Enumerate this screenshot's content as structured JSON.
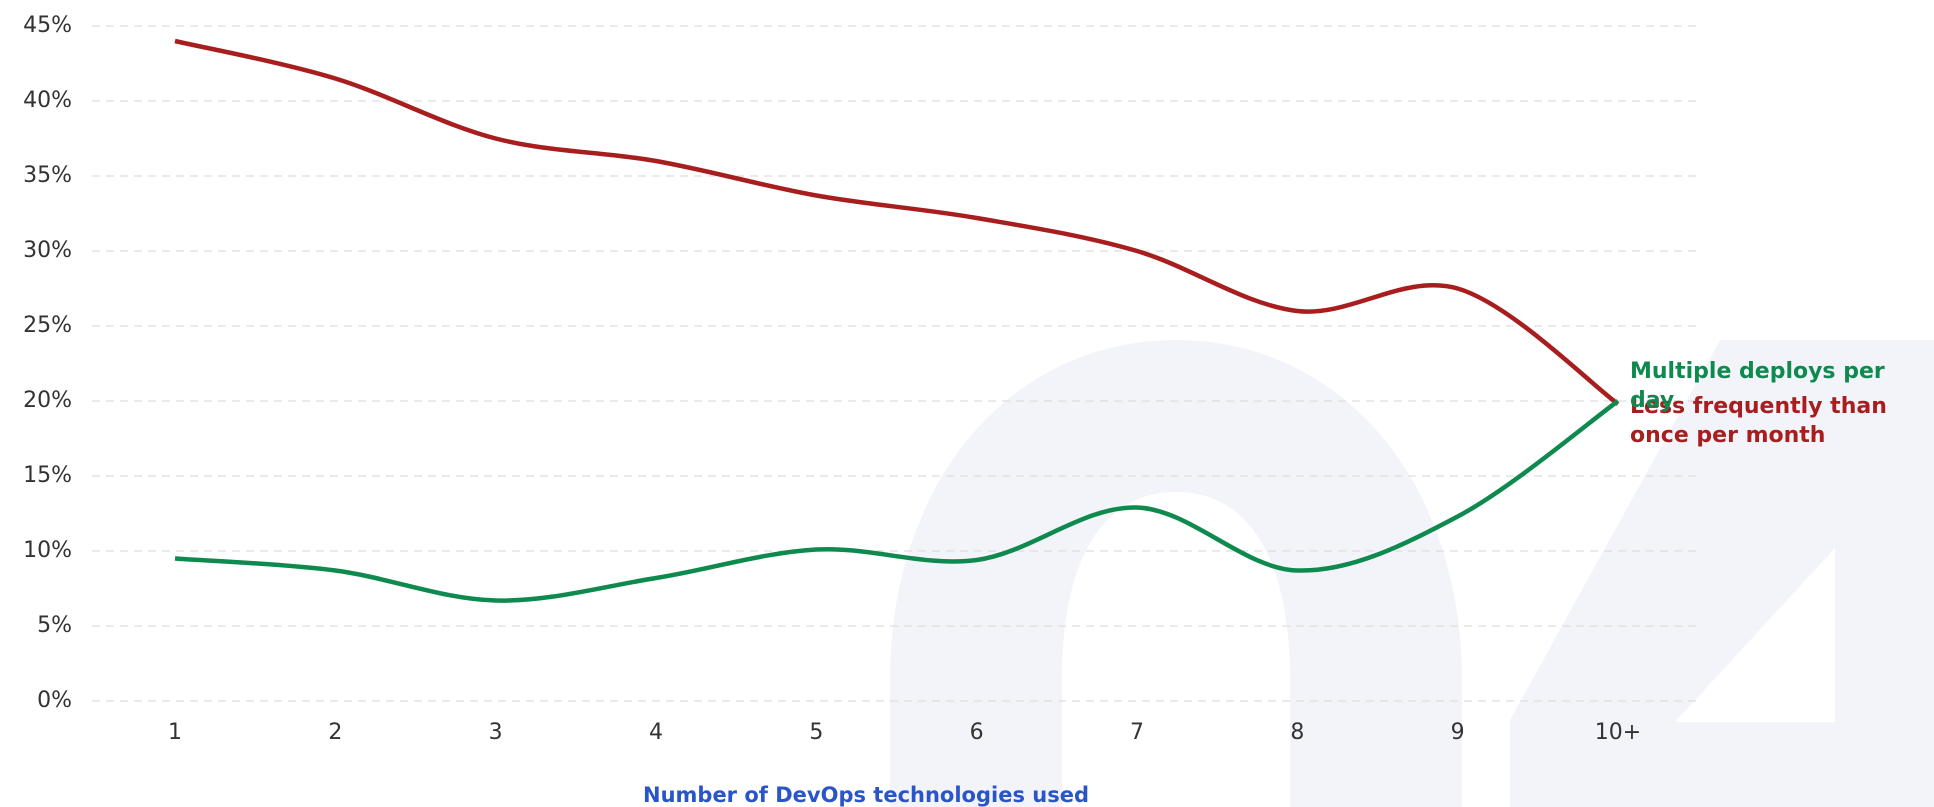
{
  "chart_data": {
    "type": "line",
    "x_label": "Number of DevOps technologies used",
    "categories": [
      "1",
      "2",
      "3",
      "4",
      "5",
      "6",
      "7",
      "8",
      "9",
      "10+"
    ],
    "series": [
      {
        "name": "Less frequently than once per month",
        "color": "#a81e1e",
        "values": [
          44,
          41.5,
          37.5,
          36,
          33.7,
          32.2,
          30,
          26,
          27.5,
          19.8
        ]
      },
      {
        "name": "Multiple deploys per day",
        "color": "#0f8a4f",
        "values": [
          9.5,
          8.7,
          6.7,
          8.2,
          10.1,
          9.4,
          12.9,
          8.7,
          12.3,
          20
        ]
      }
    ],
    "ylim": [
      0,
      45
    ],
    "yticks": [
      {
        "value": 0,
        "label": "0%"
      },
      {
        "value": 5,
        "label": "5%"
      },
      {
        "value": 10,
        "label": "10%"
      },
      {
        "value": 15,
        "label": "15%"
      },
      {
        "value": 20,
        "label": "20%"
      },
      {
        "value": 25,
        "label": "25%"
      },
      {
        "value": 30,
        "label": "30%"
      },
      {
        "value": 35,
        "label": "35%"
      },
      {
        "value": 40,
        "label": "40%"
      },
      {
        "value": 45,
        "label": "45%"
      }
    ],
    "grid": true
  }
}
